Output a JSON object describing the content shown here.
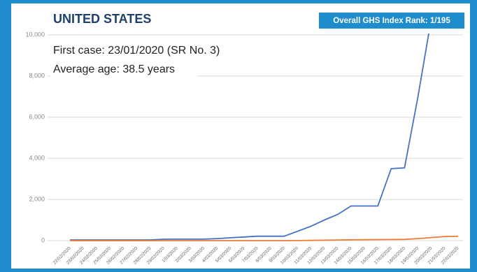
{
  "chart_data": {
    "type": "line",
    "title": "UNITED STATES",
    "badge": "Overall GHS Index Rank: 1/195",
    "annotations": [
      "First case: 23/01/2020 (SR No. 3)",
      "Average age: 38.5 years"
    ],
    "categories": [
      "22/02/2020",
      "23/02/2020",
      "24/02/2020",
      "25/02/2020",
      "26/02/2020",
      "27/02/2020",
      "28/02/2020",
      "29/02/2020",
      "1/03/2020",
      "2/03/2020",
      "3/03/2020",
      "4/03/2020",
      "5/03/2020",
      "6/03/2020",
      "7/03/2020",
      "8/03/2020",
      "9/03/2020",
      "10/03/2020",
      "11/03/2020",
      "12/03/2020",
      "13/03/2020",
      "14/03/2020",
      "15/03/2020",
      "16/03/2020",
      "17/03/2020",
      "18/03/2020",
      "19/03/2020",
      "20/03/2020",
      "21/03/2020",
      "22/03/2020"
    ],
    "series": [
      {
        "color": "#4472c4",
        "values": [
          35,
          35,
          35,
          35,
          35,
          35,
          35,
          68,
          70,
          70,
          70,
          100,
          140,
          175,
          215,
          215,
          215,
          450,
          700,
          1000,
          1270,
          1680,
          1680,
          1680,
          3500,
          3540,
          7000,
          10800,
          null,
          null
        ]
      },
      {
        "color": "#ed7d31",
        "values": [
          0,
          0,
          0,
          0,
          0,
          0,
          0,
          0,
          0,
          0,
          0,
          0,
          0,
          0,
          0,
          0,
          0,
          2,
          10,
          20,
          30,
          40,
          45,
          50,
          55,
          60,
          100,
          150,
          200,
          210
        ]
      }
    ],
    "ylim": [
      0,
      10000
    ],
    "yticks": [
      0,
      {
        "value": 2000,
        "label": "2,000"
      },
      {
        "value": 4000,
        "label": "4,000"
      },
      {
        "value": 6000,
        "label": "6,000"
      },
      {
        "value": 8000,
        "label": "8,000"
      },
      {
        "value": 10000,
        "label": "10,000"
      }
    ],
    "grid": true
  }
}
